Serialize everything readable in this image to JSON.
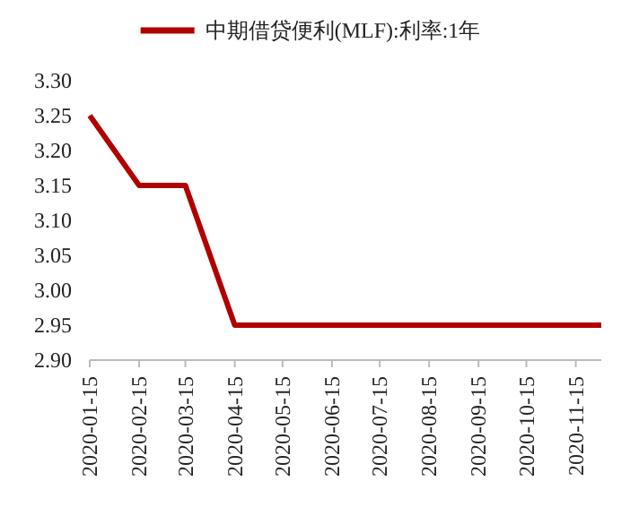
{
  "chart_data": {
    "type": "line",
    "x": [
      "2020-01-15",
      "2020-02-15",
      "2020-03-15",
      "2020-04-15",
      "2020-05-15",
      "2020-06-15",
      "2020-07-15",
      "2020-08-15",
      "2020-09-15",
      "2020-10-15",
      "2020-11-15",
      "2020-12-01"
    ],
    "series": [
      {
        "name": "中期借贷便利(MLF):利率:1年",
        "color": "#b00000",
        "values": [
          3.25,
          3.15,
          3.15,
          2.95,
          2.95,
          2.95,
          2.95,
          2.95,
          2.95,
          2.95,
          2.95,
          2.95
        ]
      }
    ],
    "xlim": [
      "2020-01-15",
      "2020-12-01"
    ],
    "xticks": [
      "2020-01-15",
      "2020-02-15",
      "2020-03-15",
      "2020-04-15",
      "2020-05-15",
      "2020-06-15",
      "2020-07-15",
      "2020-08-15",
      "2020-09-15",
      "2020-10-15",
      "2020-11-15"
    ],
    "ylim": [
      2.9,
      3.3
    ],
    "yticks": [
      {
        "value": 2.9,
        "label": "2.90"
      },
      {
        "value": 2.95,
        "label": "2.95"
      },
      {
        "value": 3.0,
        "label": "3.00"
      },
      {
        "value": 3.05,
        "label": "3.05"
      },
      {
        "value": 3.1,
        "label": "3.10"
      },
      {
        "value": 3.15,
        "label": "3.15"
      },
      {
        "value": 3.2,
        "label": "3.20"
      },
      {
        "value": 3.25,
        "label": "3.25"
      },
      {
        "value": 3.3,
        "label": "3.30"
      }
    ],
    "legend": "top",
    "grid": false,
    "marker": "none",
    "line_style": "solid"
  }
}
